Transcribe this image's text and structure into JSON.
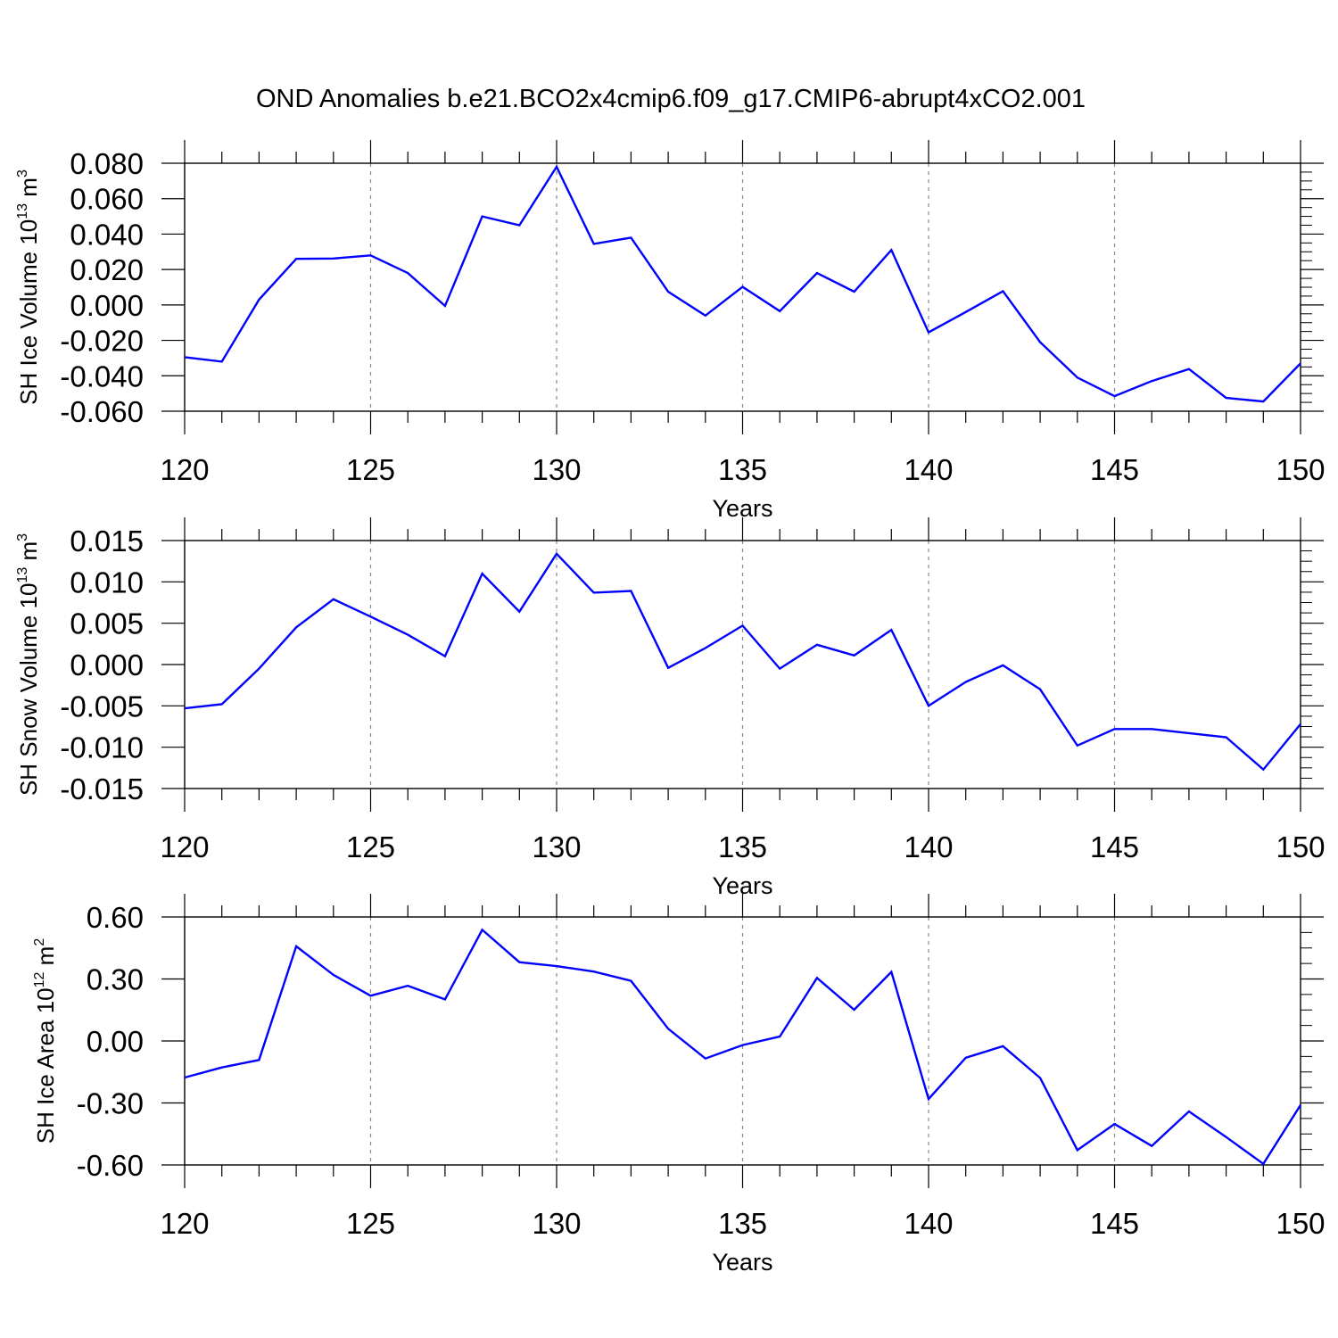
{
  "title": "OND Anomalies b.e21.BCO2x4cmip6.f09_g17.CMIP6-abrupt4xCO2.001",
  "colors": {
    "line": "#0000ff",
    "axes": "#000000",
    "grid": "#888888"
  },
  "chart_data": [
    {
      "type": "line",
      "ylabel": {
        "text": "SH Ice Volume 10",
        "sup": "13",
        "unit": " m",
        "unit_sup": "3"
      },
      "xlabel": "Years",
      "xlim": [
        120,
        150
      ],
      "ylim": [
        -0.06,
        0.08
      ],
      "xticks": [
        120,
        125,
        130,
        135,
        140,
        145,
        150
      ],
      "xtick_labels": [
        "120",
        "125",
        "130",
        "135",
        "140",
        "145",
        "150"
      ],
      "yticks": [
        -0.06,
        -0.04,
        -0.02,
        0.0,
        0.02,
        0.04,
        0.06,
        0.08
      ],
      "ytick_labels": [
        "-0.060",
        "-0.040",
        "-0.020",
        "0.000",
        "0.020",
        "0.040",
        "0.060",
        "0.080"
      ],
      "grid": "vertical dashed at major x ticks",
      "series": [
        {
          "x": [
            120,
            121,
            122,
            123,
            124,
            125,
            126,
            127,
            128,
            129,
            130,
            131,
            132,
            133,
            134,
            135,
            136,
            137,
            138,
            139,
            140,
            141,
            142,
            143,
            144,
            145,
            146,
            147,
            148,
            149,
            150
          ],
          "values": [
            -0.0295,
            -0.032,
            0.003,
            0.026,
            0.0262,
            0.028,
            0.018,
            -0.0005,
            0.05,
            0.045,
            0.078,
            0.0345,
            0.038,
            0.0075,
            -0.006,
            0.0102,
            -0.0035,
            0.018,
            0.0075,
            0.031,
            -0.0155,
            -0.004,
            0.0078,
            -0.021,
            -0.041,
            -0.0515,
            -0.043,
            -0.0362,
            -0.0525,
            -0.0545,
            -0.033
          ]
        }
      ]
    },
    {
      "type": "line",
      "ylabel": {
        "text": "SH Snow Volume 10",
        "sup": "13",
        "unit": " m",
        "unit_sup": "3"
      },
      "xlabel": "Years",
      "xlim": [
        120,
        150
      ],
      "ylim": [
        -0.015,
        0.015
      ],
      "xticks": [
        120,
        125,
        130,
        135,
        140,
        145,
        150
      ],
      "xtick_labels": [
        "120",
        "125",
        "130",
        "135",
        "140",
        "145",
        "150"
      ],
      "yticks": [
        -0.015,
        -0.01,
        -0.005,
        0.0,
        0.005,
        0.01,
        0.015
      ],
      "ytick_labels": [
        "-0.015",
        "-0.010",
        "-0.005",
        "0.000",
        "0.005",
        "0.010",
        "0.015"
      ],
      "grid": "vertical dashed at major x ticks",
      "series": [
        {
          "x": [
            120,
            121,
            122,
            123,
            124,
            125,
            126,
            127,
            128,
            129,
            130,
            131,
            132,
            133,
            134,
            135,
            136,
            137,
            138,
            139,
            140,
            141,
            142,
            143,
            144,
            145,
            146,
            147,
            148,
            149,
            150
          ],
          "values": [
            -0.0053,
            -0.0048,
            -0.0005,
            0.0045,
            0.0079,
            0.0058,
            0.0036,
            0.001,
            0.011,
            0.0064,
            0.0134,
            0.0087,
            0.0089,
            -0.0004,
            0.002,
            0.0047,
            -0.0005,
            0.0024,
            0.0011,
            0.0042,
            -0.005,
            -0.0021,
            -0.0001,
            -0.003,
            -0.0098,
            -0.0078,
            -0.0078,
            -0.0083,
            -0.0088,
            -0.0127,
            -0.0072
          ]
        }
      ]
    },
    {
      "type": "line",
      "ylabel": {
        "text": "SH Ice Area 10",
        "sup": "12",
        "unit": " m",
        "unit_sup": "2"
      },
      "xlabel": "Years",
      "xlim": [
        120,
        150
      ],
      "ylim": [
        -0.6,
        0.6
      ],
      "xticks": [
        120,
        125,
        130,
        135,
        140,
        145,
        150
      ],
      "xtick_labels": [
        "120",
        "125",
        "130",
        "135",
        "140",
        "145",
        "150"
      ],
      "yticks": [
        -0.6,
        -0.3,
        0.0,
        0.3,
        0.6
      ],
      "ytick_labels": [
        "-0.60",
        "-0.30",
        "0.00",
        "0.30",
        "0.60"
      ],
      "grid": "vertical dashed at major x ticks",
      "series": [
        {
          "x": [
            120,
            121,
            122,
            123,
            124,
            125,
            126,
            127,
            128,
            129,
            130,
            131,
            132,
            133,
            134,
            135,
            136,
            137,
            138,
            139,
            140,
            141,
            142,
            143,
            144,
            145,
            146,
            147,
            148,
            149,
            150
          ],
          "values": [
            -0.177,
            -0.128,
            -0.092,
            0.458,
            0.32,
            0.219,
            0.267,
            0.201,
            0.538,
            0.381,
            0.362,
            0.336,
            0.291,
            0.059,
            -0.085,
            -0.02,
            0.021,
            0.305,
            0.151,
            0.334,
            -0.281,
            -0.081,
            -0.025,
            -0.179,
            -0.528,
            -0.402,
            -0.508,
            -0.341,
            -0.465,
            -0.595,
            -0.31
          ]
        }
      ]
    }
  ]
}
